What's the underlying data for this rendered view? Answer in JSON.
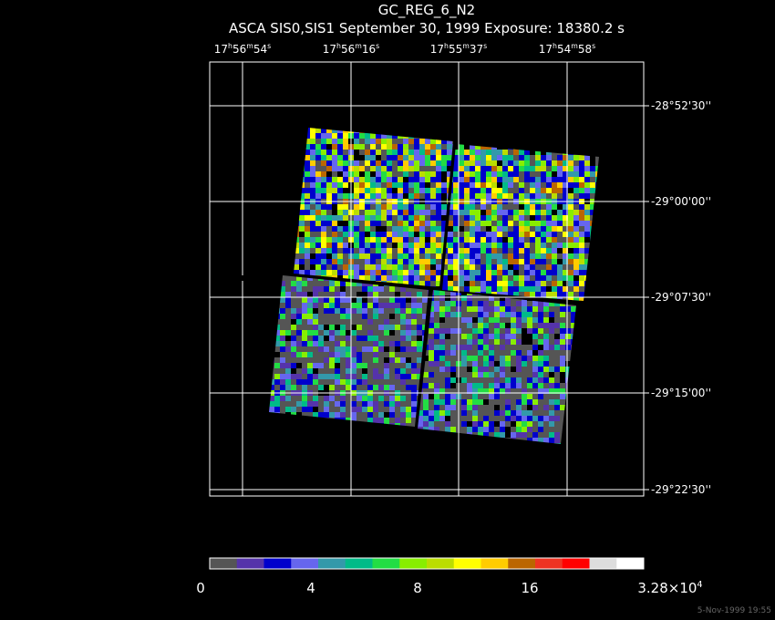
{
  "header": {
    "title": "GC_REG_6_N2",
    "subtitle": "ASCA SIS0,SIS1 September 30, 1999 Exposure: 18380.2 s"
  },
  "ra_labels": [
    [
      "17",
      "h",
      "56",
      "m",
      "54",
      "s"
    ],
    [
      "17",
      "h",
      "56",
      "m",
      "16",
      "s"
    ],
    [
      "17",
      "h",
      "55",
      "m",
      "37",
      "s"
    ],
    [
      "17",
      "h",
      "54",
      "m",
      "58",
      "s"
    ]
  ],
  "dec_labels": [
    "-28°52'30''",
    "-29°00'00''",
    "-29°07'30''",
    "-29°15'00''",
    "-29°22'30''"
  ],
  "colorbar": {
    "colors": [
      "#555555",
      "#5533aa",
      "#0000cc",
      "#6666ee",
      "#3399aa",
      "#00bb88",
      "#22dd44",
      "#88ee00",
      "#bbdd00",
      "#ffff00",
      "#ffcc00",
      "#bb6600",
      "#ee3322",
      "#ff0000",
      "#dddddd",
      "#ffffff"
    ],
    "labels": [
      [
        "0"
      ],
      [
        "4"
      ],
      [
        "8"
      ],
      [
        "16"
      ],
      [
        "3.28×10",
        "4"
      ]
    ]
  },
  "footer": "5-Nov-1999 19:55"
}
